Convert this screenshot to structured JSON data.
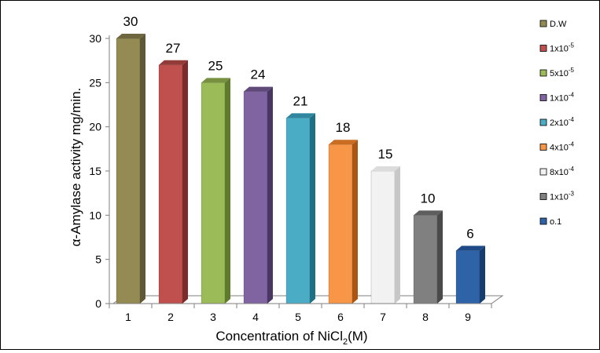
{
  "chart_data": {
    "type": "bar",
    "categories": [
      "1",
      "2",
      "3",
      "4",
      "5",
      "6",
      "7",
      "8",
      "9"
    ],
    "values": [
      30,
      27,
      25,
      24,
      21,
      18,
      15,
      10,
      6
    ],
    "data_labels": [
      "30",
      "27",
      "25",
      "24",
      "21",
      "18",
      "15",
      "10",
      "6"
    ],
    "ylabel": "α-Amylase activity mg/min.",
    "xlabel_main": "Concentration of NiCl",
    "xlabel_sub": "2",
    "xlabel_tail": "(M)",
    "ylim": [
      0,
      30
    ],
    "yticks": [
      "0",
      "5",
      "10",
      "15",
      "20",
      "25",
      "30"
    ],
    "grid": false,
    "legend_placement": "right",
    "legend": [
      {
        "base": "D.W",
        "sup": ""
      },
      {
        "base": "1x10",
        "sup": "-5"
      },
      {
        "base": "5x10",
        "sup": "-5"
      },
      {
        "base": "1x10",
        "sup": "-4"
      },
      {
        "base": "2x10",
        "sup": "-4"
      },
      {
        "base": "4x10",
        "sup": "-4"
      },
      {
        "base": "8x10",
        "sup": "-4"
      },
      {
        "base": "1x10",
        "sup": "-3"
      },
      {
        "base": "o.1",
        "sup": ""
      }
    ],
    "colors": [
      {
        "front": "#948a54",
        "side": "#5f5836",
        "top": "#6e663e"
      },
      {
        "front": "#c0504d",
        "side": "#7c2b29",
        "top": "#933b38"
      },
      {
        "front": "#9bbb59",
        "side": "#5f7a2c",
        "top": "#769040"
      },
      {
        "front": "#8064a2",
        "side": "#4a3663",
        "top": "#5f4a7a"
      },
      {
        "front": "#4bacc6",
        "side": "#1f6f85",
        "top": "#2f869e"
      },
      {
        "front": "#f79646",
        "side": "#a95514",
        "top": "#c86d22"
      },
      {
        "front": "#f2f2f2",
        "side": "#c7c7c7",
        "top": "#dcdcdc"
      },
      {
        "front": "#808080",
        "side": "#4a4a4a",
        "top": "#5e5e5e"
      },
      {
        "front": "#2e63a8",
        "side": "#173d70",
        "top": "#1e4b88"
      }
    ]
  }
}
